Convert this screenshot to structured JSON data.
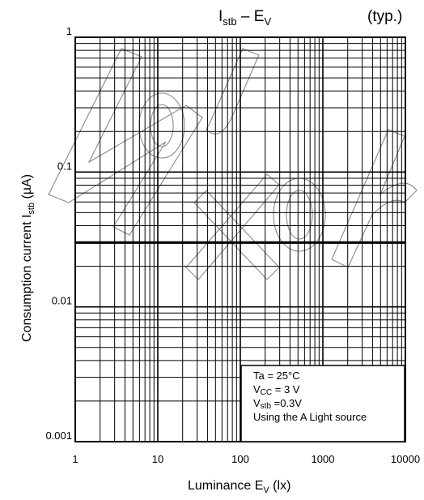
{
  "chart_data": {
    "type": "line",
    "title": {
      "main": "I",
      "main_sub": "stb",
      "dash": " – ",
      "main2": "E",
      "main2_sub": "V"
    },
    "typ_label": "(typ.)",
    "xlabel": {
      "text": "Luminance E",
      "sub": "V",
      "unit": " (lx)"
    },
    "ylabel": {
      "text": "Consumption current I",
      "sub": "stb",
      "unit": "   (µA)"
    },
    "x_scale": "log",
    "y_scale": "log",
    "xlim": [
      1,
      10000
    ],
    "ylim": [
      0.001,
      1
    ],
    "x_ticks": [
      "1",
      "10",
      "100",
      "1000",
      "10000"
    ],
    "y_ticks": [
      "0.001",
      "0.01",
      "0.1",
      "1"
    ],
    "grid": true,
    "series": [
      {
        "x": [
          1,
          10,
          100,
          1000,
          10000
        ],
        "y": [
          0.03,
          0.03,
          0.03,
          0.03,
          0.03
        ]
      }
    ],
    "conditions": [
      {
        "a": "Ta = 25°C"
      },
      {
        "a": "V",
        "sub": "CC",
        "b": " = 3 V"
      },
      {
        "a": "V",
        "sub": "stb",
        "b": " =0.3V"
      },
      {
        "a": "Using the A Light source"
      }
    ],
    "legend_position": "bottom-right"
  }
}
